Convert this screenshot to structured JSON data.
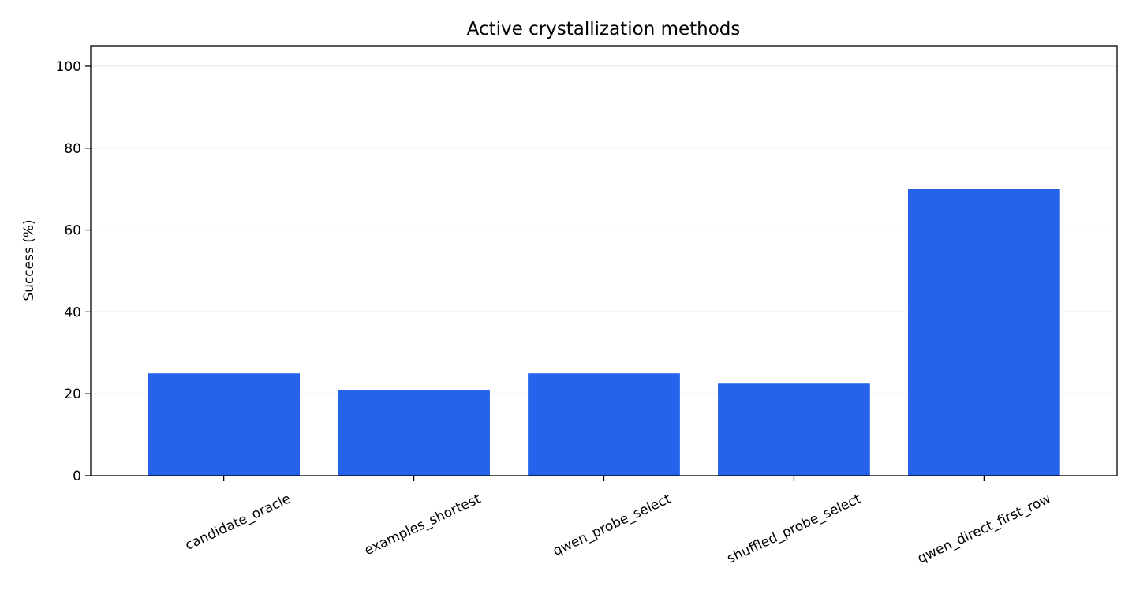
{
  "chart_data": {
    "type": "bar",
    "title": "Active crystallization methods",
    "xlabel": "",
    "ylabel": "Success (%)",
    "categories": [
      "candidate_oracle",
      "examples_shortest",
      "qwen_probe_select",
      "shuffled_probe_select",
      "qwen_direct_first_row"
    ],
    "values": [
      25.0,
      20.8,
      25.0,
      22.5,
      70.0
    ],
    "ylim": [
      0,
      105
    ],
    "yticks": [
      0,
      20,
      40,
      60,
      80,
      100
    ],
    "grid": true,
    "bar_color": "#2563eb",
    "grid_color": "#e5e5e5"
  }
}
